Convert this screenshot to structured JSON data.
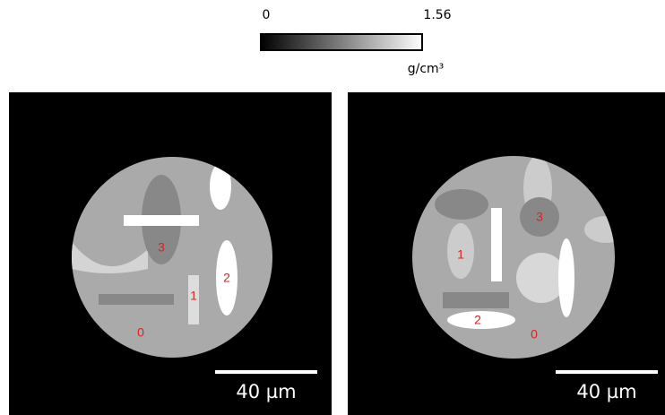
{
  "colorbar": {
    "min_label": "0",
    "max_label": "1.56",
    "unit": "g/cm³"
  },
  "panels": [
    {
      "region_labels": [
        "0",
        "1",
        "2",
        "3"
      ],
      "scale_bar": "40 µm"
    },
    {
      "region_labels": [
        "0",
        "1",
        "2",
        "3"
      ],
      "scale_bar": "40 µm"
    }
  ]
}
